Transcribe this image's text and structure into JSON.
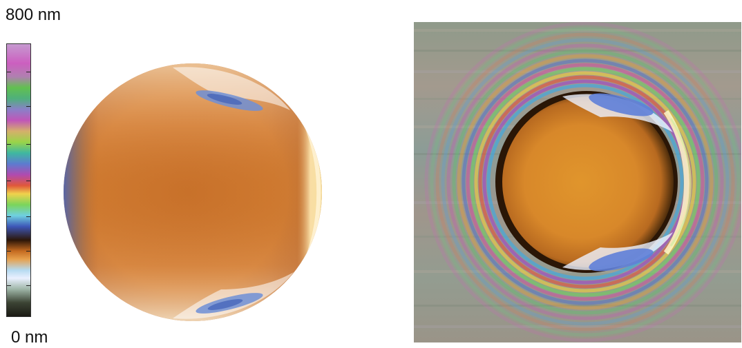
{
  "scale": {
    "max_label": "800 nm",
    "min_label": "0 nm",
    "max_value_nm": 800,
    "min_value_nm": 0
  },
  "images": {
    "simulation": {
      "icon": "thickness-map-disc",
      "main_color": "#c7712a"
    },
    "photograph": {
      "icon": "interference-fringe-photo",
      "main_color": "#d98a28"
    }
  }
}
